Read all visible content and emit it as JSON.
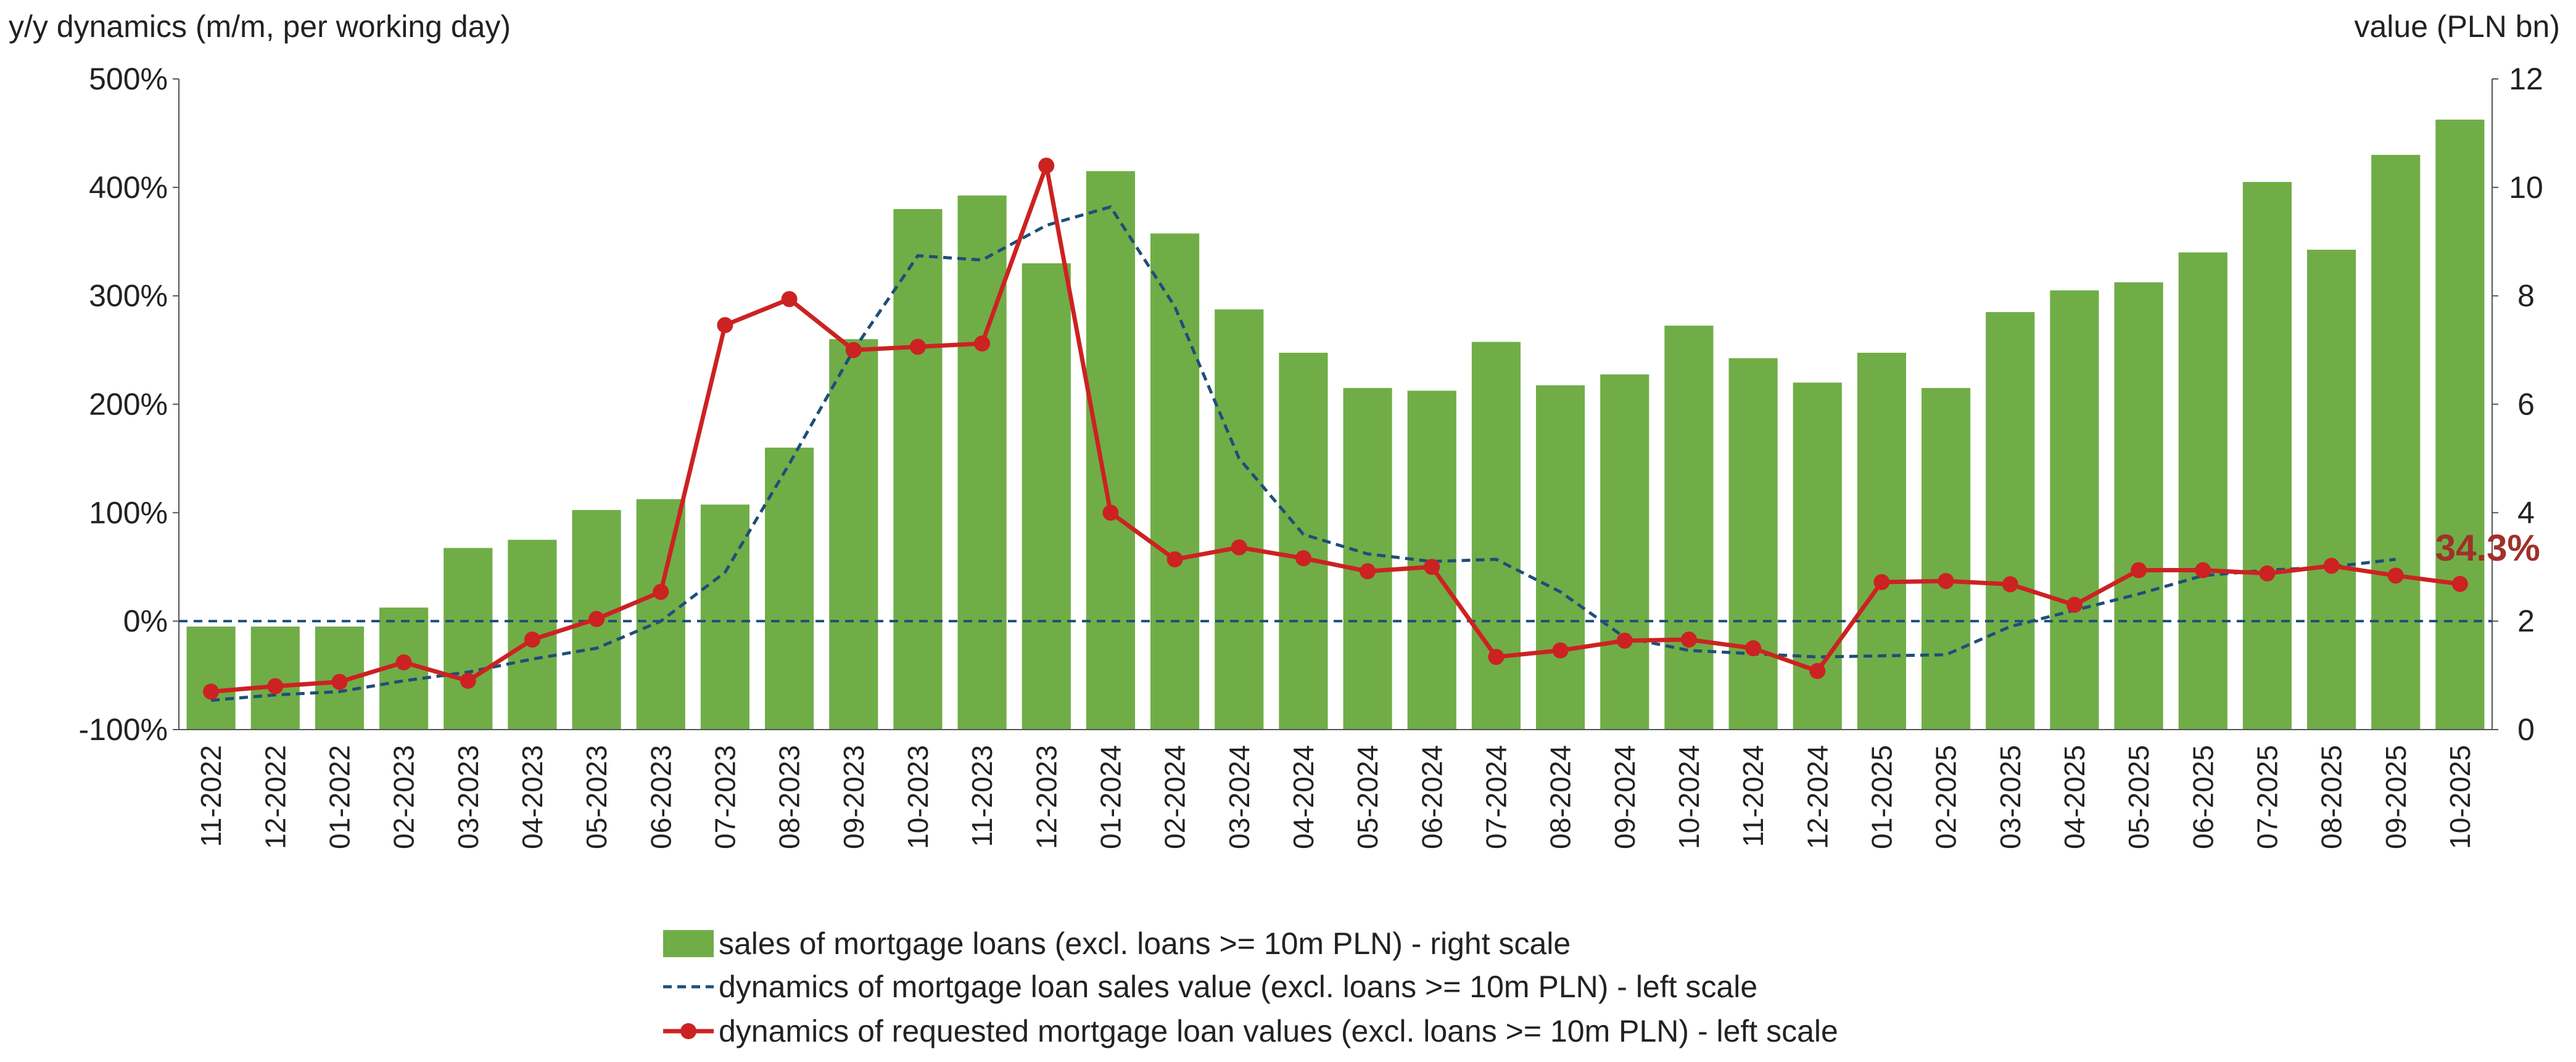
{
  "chart_data": {
    "type": "bar",
    "left_axis_title": "y/y dynamics (m/m, per working day)",
    "right_axis_title": "value (PLN bn)",
    "left_ylim": [
      -100,
      500
    ],
    "left_ticks": [
      "-100%",
      "0%",
      "100%",
      "200%",
      "300%",
      "400%",
      "500%"
    ],
    "right_ylim": [
      0,
      12
    ],
    "right_ticks": [
      "0",
      "2",
      "4",
      "6",
      "8",
      "10",
      "12"
    ],
    "categories": [
      "11-2022",
      "12-2022",
      "01-2022",
      "02-2023",
      "03-2023",
      "04-2023",
      "05-2023",
      "06-2023",
      "07-2023",
      "08-2023",
      "09-2023",
      "10-2023",
      "11-2023",
      "12-2023",
      "01-2024",
      "02-2024",
      "03-2024",
      "04-2024",
      "05-2024",
      "06-2024",
      "07-2024",
      "08-2024",
      "09-2024",
      "10-2024",
      "11-2024",
      "12-2024",
      "01-2025",
      "02-2025",
      "03-2025",
      "04-2025",
      "05-2025",
      "06-2025",
      "07-2025",
      "08-2025",
      "09-2025",
      "10-2025"
    ],
    "series": [
      {
        "name": "sales of mortgage loans (excl. loans >= 10m PLN) - right scale",
        "type": "bar",
        "axis": "right",
        "color": "#70ad47",
        "values": [
          1.9,
          1.9,
          1.9,
          2.25,
          3.35,
          3.5,
          4.05,
          4.25,
          4.15,
          5.2,
          7.2,
          9.6,
          9.85,
          8.6,
          10.3,
          9.15,
          7.75,
          6.95,
          6.3,
          6.25,
          7.15,
          6.35,
          6.55,
          7.45,
          6.85,
          6.4,
          6.95,
          6.3,
          7.7,
          8.1,
          8.25,
          8.8,
          10.1,
          8.85,
          10.6,
          11.25
        ]
      },
      {
        "name": "dynamics of mortgage loan sales value (excl. loans >= 10m PLN) - left scale",
        "type": "line",
        "style": "dashed",
        "axis": "left",
        "color": "#1f4e79",
        "values": [
          -73,
          -68,
          -65,
          -55,
          -47,
          -35,
          -25,
          0,
          45,
          145,
          250,
          337,
          333,
          365,
          382,
          290,
          150,
          80,
          62,
          55,
          57,
          27,
          -15,
          -27,
          -30,
          -33,
          -32,
          -31,
          -5,
          10,
          25,
          42,
          47,
          50,
          57,
          null
        ]
      },
      {
        "name": "dynamics of requested mortgage loan values (excl. loans >= 10m PLN) - left scale",
        "type": "line",
        "style": "solid",
        "markers": true,
        "axis": "left",
        "color": "#cc2222",
        "values": [
          -65,
          -60,
          -56,
          -38,
          -55,
          -17,
          2,
          27,
          273,
          297,
          250,
          253,
          256,
          420,
          100,
          57,
          68,
          58,
          46,
          50,
          -33,
          -27,
          -18,
          -17,
          -25,
          -46,
          36,
          37,
          34,
          15,
          47,
          47,
          44,
          51,
          42,
          34.3
        ]
      }
    ],
    "annotation": {
      "text": "34.3%",
      "color": "#a0302a"
    },
    "legend_position": "bottom",
    "grid": false
  }
}
